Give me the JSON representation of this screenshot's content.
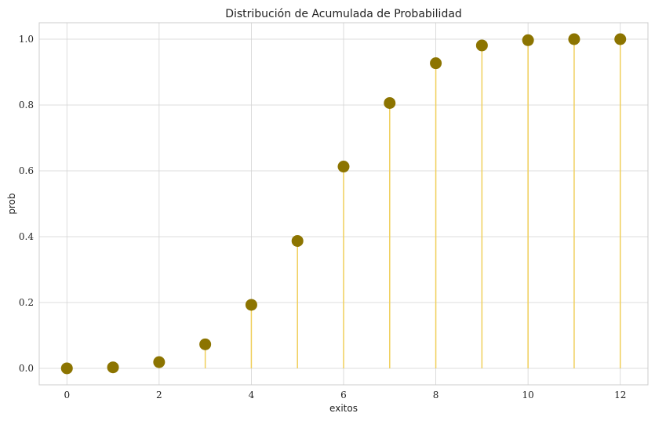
{
  "chart_data": {
    "type": "stem",
    "title": "Distribución de Acumulada de Probabilidad",
    "xlabel": "exitos",
    "ylabel": "prob",
    "x": [
      0,
      1,
      2,
      3,
      4,
      5,
      6,
      7,
      8,
      9,
      10,
      11,
      12
    ],
    "y": [
      0.0001,
      0.003,
      0.019,
      0.073,
      0.193,
      0.387,
      0.613,
      0.806,
      0.927,
      0.981,
      0.997,
      1.0,
      1.0
    ],
    "xlim": [
      -0.6,
      12.6
    ],
    "ylim": [
      -0.05,
      1.05
    ],
    "xticks": [
      0,
      2,
      4,
      6,
      8,
      10,
      12
    ],
    "xtick_labels": [
      "0",
      "2",
      "4",
      "6",
      "8",
      "10",
      "12"
    ],
    "yticks": [
      0.0,
      0.2,
      0.4,
      0.6,
      0.8,
      1.0
    ],
    "ytick_labels": [
      "0.0",
      "0.2",
      "0.4",
      "0.6",
      "0.8",
      "1.0"
    ],
    "grid": true,
    "colors": {
      "marker": "#8c7400",
      "stem": "#f0cf5a",
      "grid": "#d3d3d3",
      "frame": "#cccccc"
    }
  }
}
